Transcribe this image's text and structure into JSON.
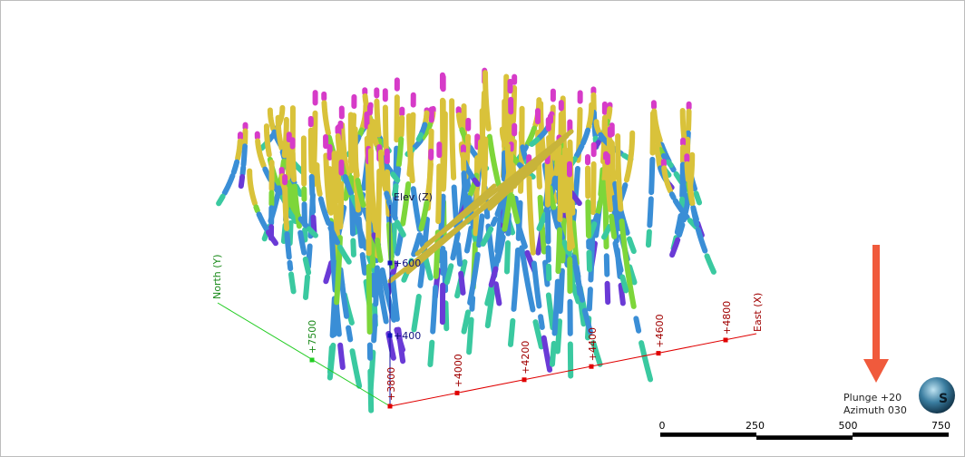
{
  "viewer": {
    "axes": {
      "elevation": {
        "label": "Elev (Z)",
        "ticks": [
          "+600",
          "+400"
        ]
      },
      "north": {
        "label": "North (Y)",
        "ticks": [
          "+7500"
        ]
      },
      "east": {
        "label": "East (X)",
        "ticks": [
          "+3800",
          "+4000",
          "+4200",
          "+4400",
          "+4600",
          "+4800"
        ]
      }
    },
    "orientation": {
      "plunge": "Plunge +20",
      "azimuth": "Azimuth 030",
      "compass": "S"
    },
    "scale_bar": {
      "ticks": [
        "0",
        "250",
        "500",
        "750"
      ]
    }
  }
}
